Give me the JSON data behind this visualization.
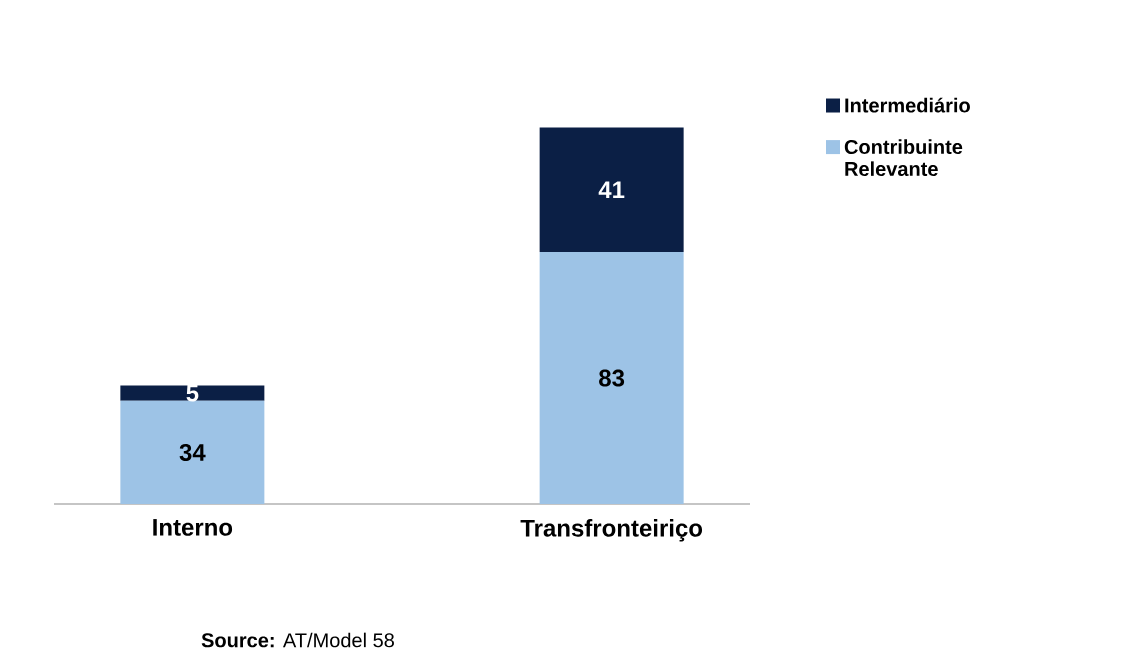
{
  "chart_data": {
    "type": "bar",
    "stacked": true,
    "data_labels": true,
    "categories": [
      "Interno",
      "Transfronteiriço"
    ],
    "series": [
      {
        "name": "Contribuinte Relevante",
        "color": "#9dc3e6",
        "values": [
          34,
          83
        ]
      },
      {
        "name": "Intermediário",
        "color": "#0b1f45",
        "values": [
          5,
          41
        ]
      }
    ],
    "legend": "top right",
    "annotations": [
      "**Source:** AT/Model 58"
    ]
  }
}
